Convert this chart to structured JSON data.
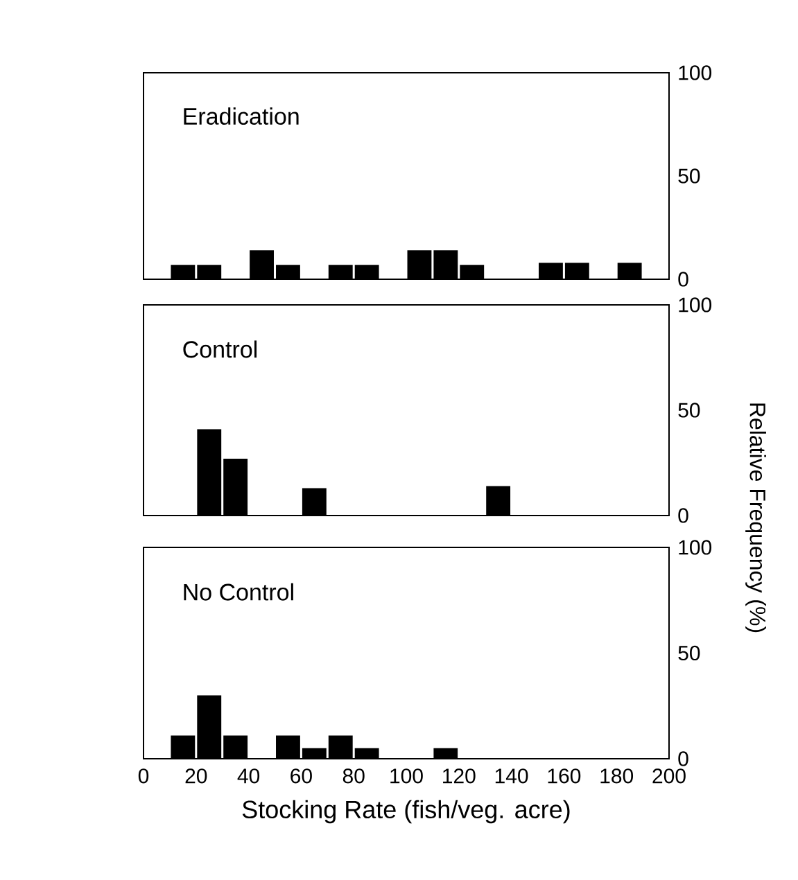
{
  "chart_data": [
    {
      "type": "histogram",
      "title": "Eradication",
      "bins": [
        10,
        20,
        30,
        40,
        50,
        60,
        70,
        80,
        90,
        100,
        110,
        120,
        130,
        140,
        150,
        160,
        170,
        180,
        190
      ],
      "values": [
        7,
        7,
        0,
        14,
        7,
        0,
        7,
        7,
        0,
        14,
        14,
        7,
        0,
        0,
        8,
        8,
        0,
        8
      ],
      "color": "#000000",
      "xlim": [
        0,
        200
      ],
      "ylim": [
        0,
        100
      ],
      "yticks": [
        0,
        50,
        100
      ],
      "tick_labels": "y",
      "grid": false
    },
    {
      "type": "histogram",
      "title": "Control",
      "ylabel": "Relative Frequency (%)",
      "bins": [
        20,
        30,
        40,
        50,
        60,
        70,
        80,
        90,
        100,
        110,
        120,
        130,
        140
      ],
      "values": [
        41,
        27,
        0,
        0,
        13,
        0,
        0,
        0,
        0,
        0,
        0,
        14
      ],
      "color": "#000000",
      "xlim": [
        0,
        200
      ],
      "ylim": [
        0,
        100
      ],
      "yticks": [
        0,
        50,
        100
      ],
      "tick_labels": "y",
      "grid": false
    },
    {
      "type": "histogram",
      "title": "No Control",
      "xlabel": "Stocking Rate (fish/veg.  acre)",
      "bins": [
        10,
        20,
        30,
        40,
        50,
        60,
        70,
        80,
        90,
        100,
        110,
        120
      ],
      "values": [
        11,
        30,
        11,
        0,
        11,
        5,
        11,
        5,
        0,
        0,
        5
      ],
      "color": "#000000",
      "xlim": [
        0,
        200
      ],
      "ylim": [
        0,
        100
      ],
      "xticks": [
        0,
        20,
        40,
        60,
        80,
        100,
        120,
        140,
        160,
        180,
        200
      ],
      "yticks": [
        0,
        50,
        100
      ],
      "grid": false
    }
  ]
}
